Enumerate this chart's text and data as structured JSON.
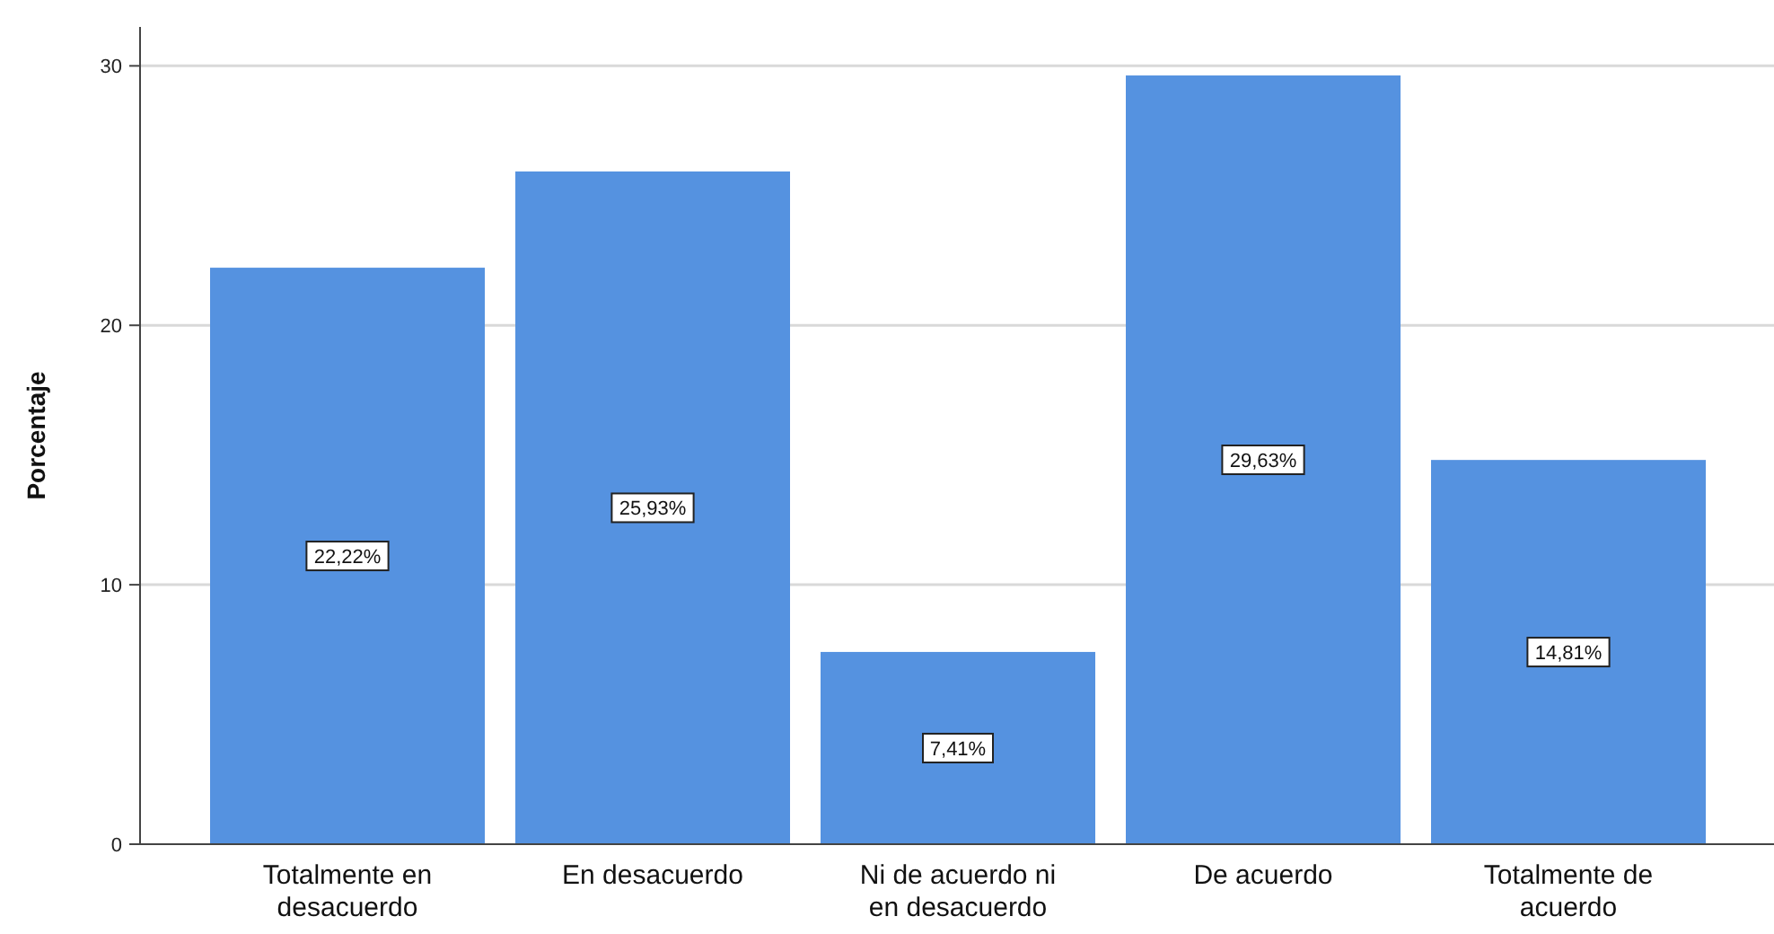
{
  "chart_data": {
    "type": "bar",
    "ylabel": "Porcentaje",
    "categories": [
      "Totalmente en desacuerdo",
      "En desacuerdo",
      "Ni de acuerdo ni en desacuerdo",
      "De acuerdo",
      "Totalmente de acuerdo"
    ],
    "values": [
      22.22,
      25.93,
      7.41,
      29.63,
      14.81
    ],
    "value_labels": [
      "22,22%",
      "25,93%",
      "7,41%",
      "29,63%",
      "14,81%"
    ],
    "color": "#5592e0",
    "ylim": [
      0,
      31.5
    ],
    "yticks": [
      0,
      10,
      20,
      30
    ],
    "grid": "y"
  }
}
